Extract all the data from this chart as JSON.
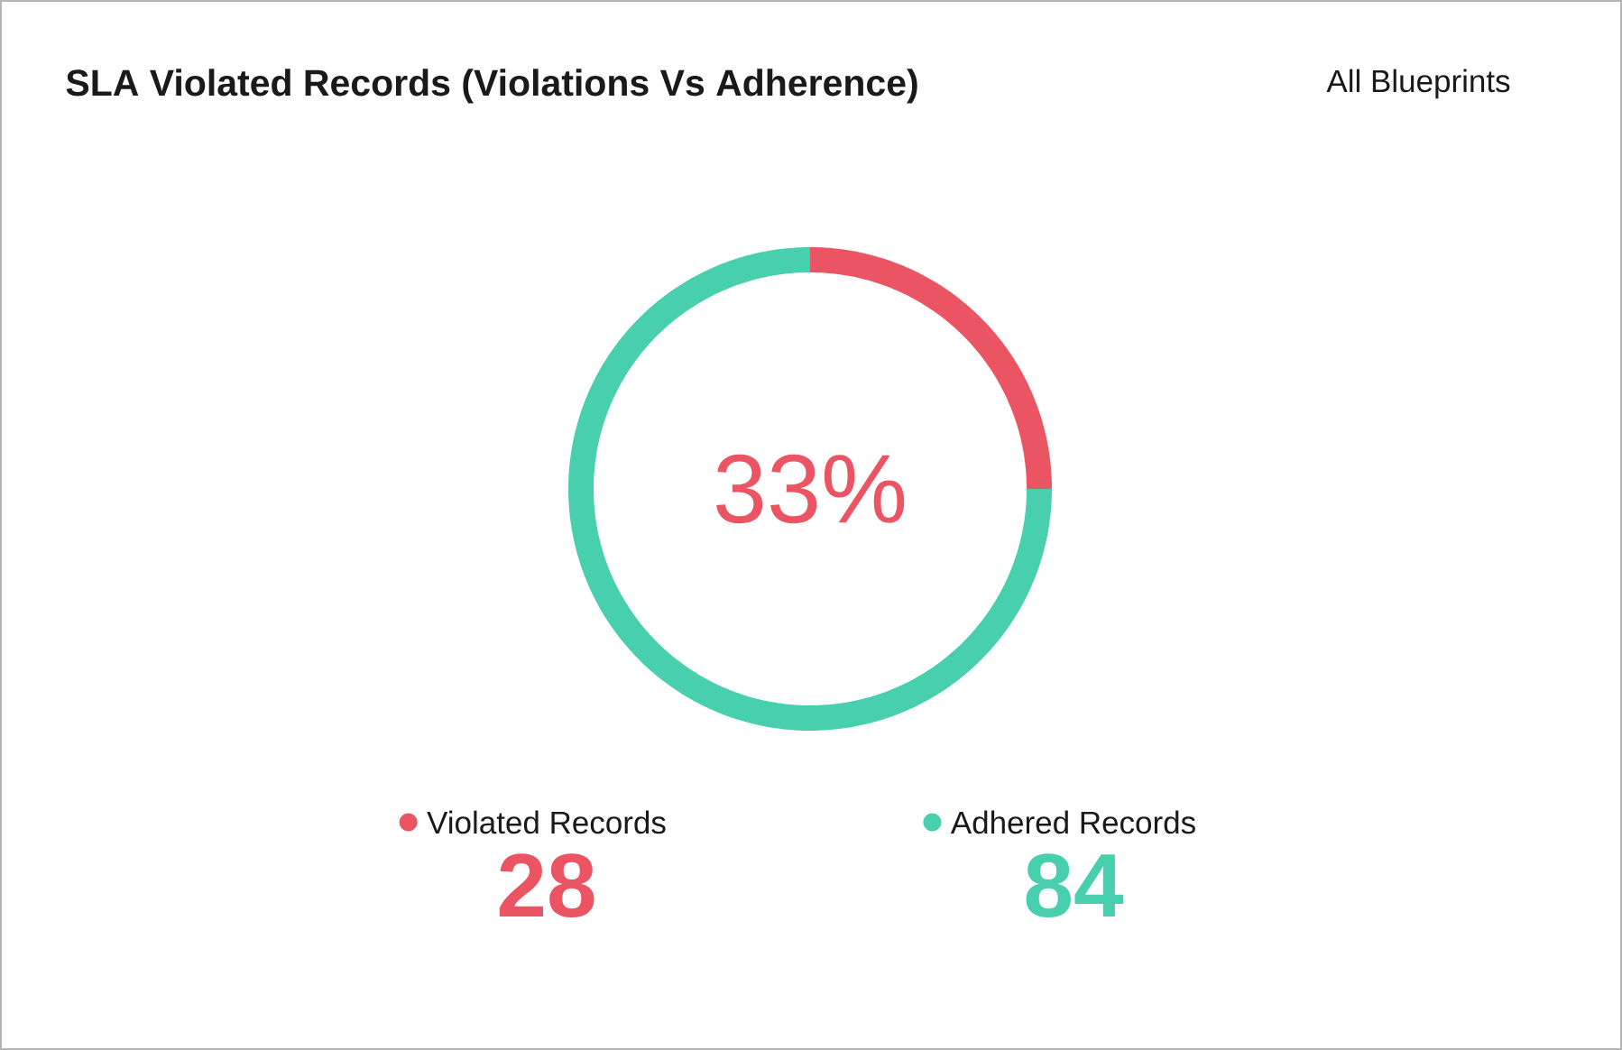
{
  "chart_data": {
    "type": "donut",
    "title": "SLA Violated Records (Violations Vs Adherence)",
    "categories": [
      "Violated Records",
      "Adhered Records"
    ],
    "values": [
      28,
      84
    ],
    "colors": [
      "#eb5463",
      "#48cfad"
    ],
    "annotations": [
      "33%",
      "All Blueprints"
    ],
    "data_labels": true,
    "legend": "bottom"
  }
}
